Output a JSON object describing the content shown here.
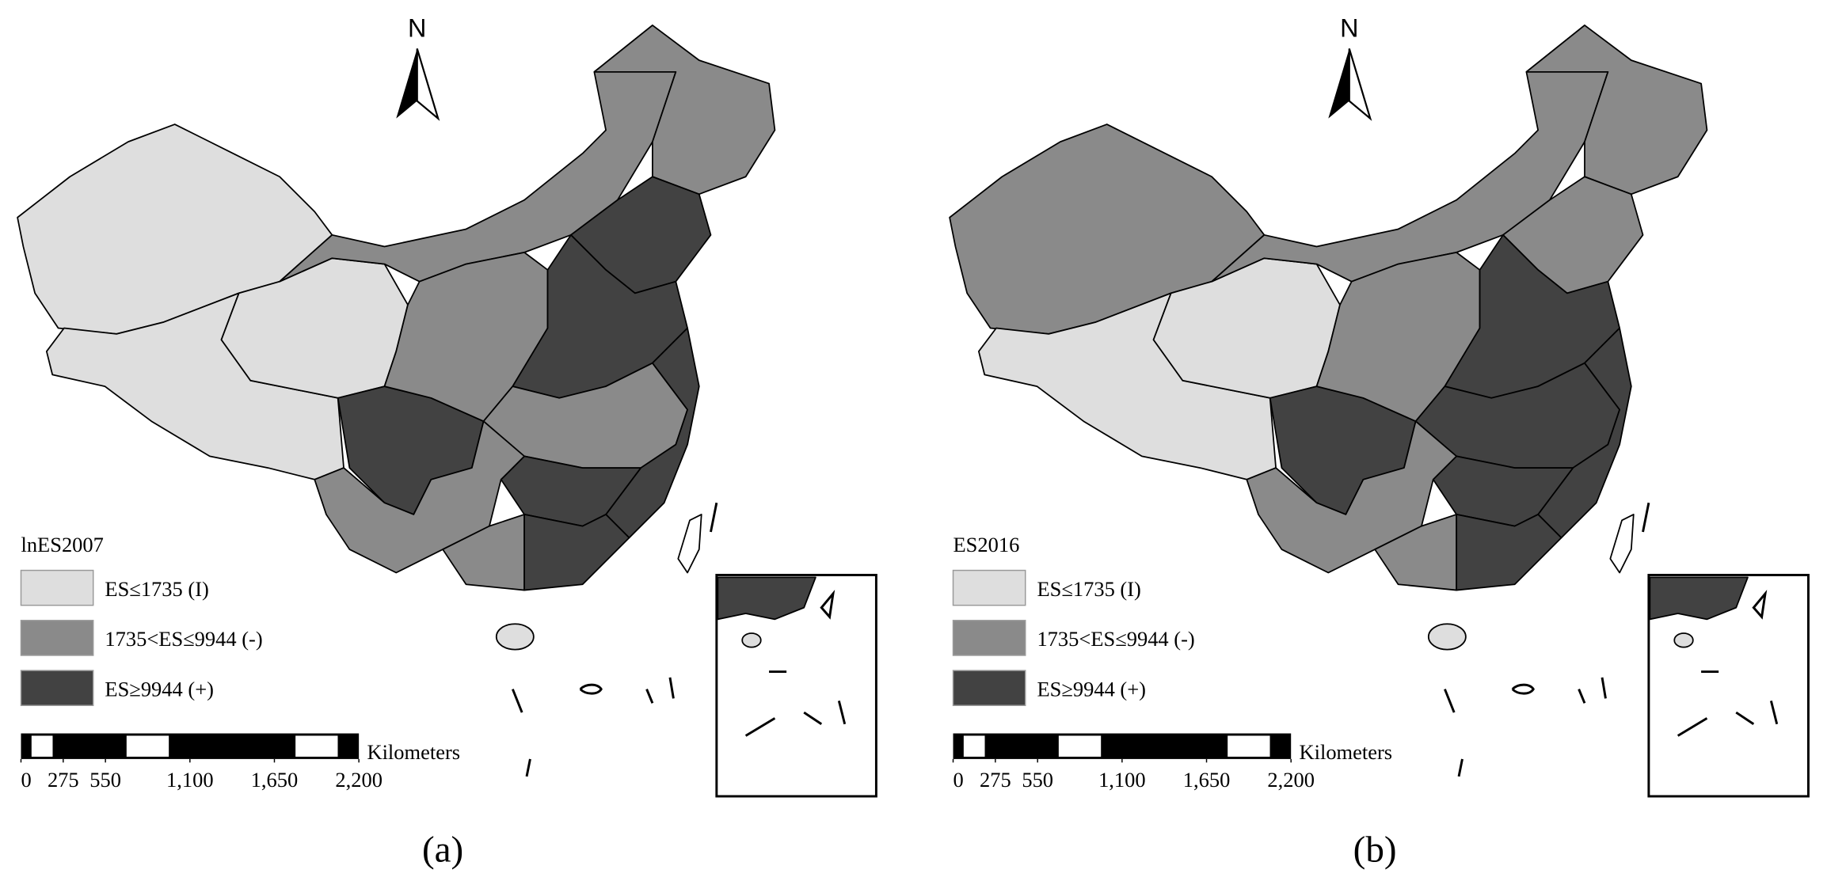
{
  "panels": [
    {
      "label": "(a)",
      "north": "N",
      "legend": {
        "title": "lnES2007",
        "entries": [
          {
            "label": "ES≤1735 (I)",
            "color": "#dedede"
          },
          {
            "label": "1735<ES≤9944 (-)",
            "color": "#8a8a8a"
          },
          {
            "label": "ES≥9944 (+)",
            "color": "#424242"
          }
        ]
      },
      "scale": {
        "unit": "Kilometers",
        "ticks": [
          0,
          275,
          550,
          {
            "value": 1100,
            "label": "1,100"
          },
          {
            "value": 1650,
            "label": "1,650"
          },
          {
            "value": 2200,
            "label": "2,200"
          }
        ]
      }
    },
    {
      "label": "(b)",
      "north": "N",
      "legend": {
        "title": "ES2016",
        "entries": [
          {
            "label": "ES≤1735 (I)",
            "color": "#dedede"
          },
          {
            "label": "1735<ES≤9944 (-)",
            "color": "#8a8a8a"
          },
          {
            "label": "ES≥9944 (+)",
            "color": "#424242"
          }
        ]
      },
      "scale": {
        "unit": "Kilometers",
        "ticks": [
          0,
          275,
          550,
          {
            "value": 1100,
            "label": "1,100"
          },
          {
            "value": 1650,
            "label": "1,650"
          },
          {
            "value": 2200,
            "label": "2,200"
          }
        ]
      }
    }
  ]
}
